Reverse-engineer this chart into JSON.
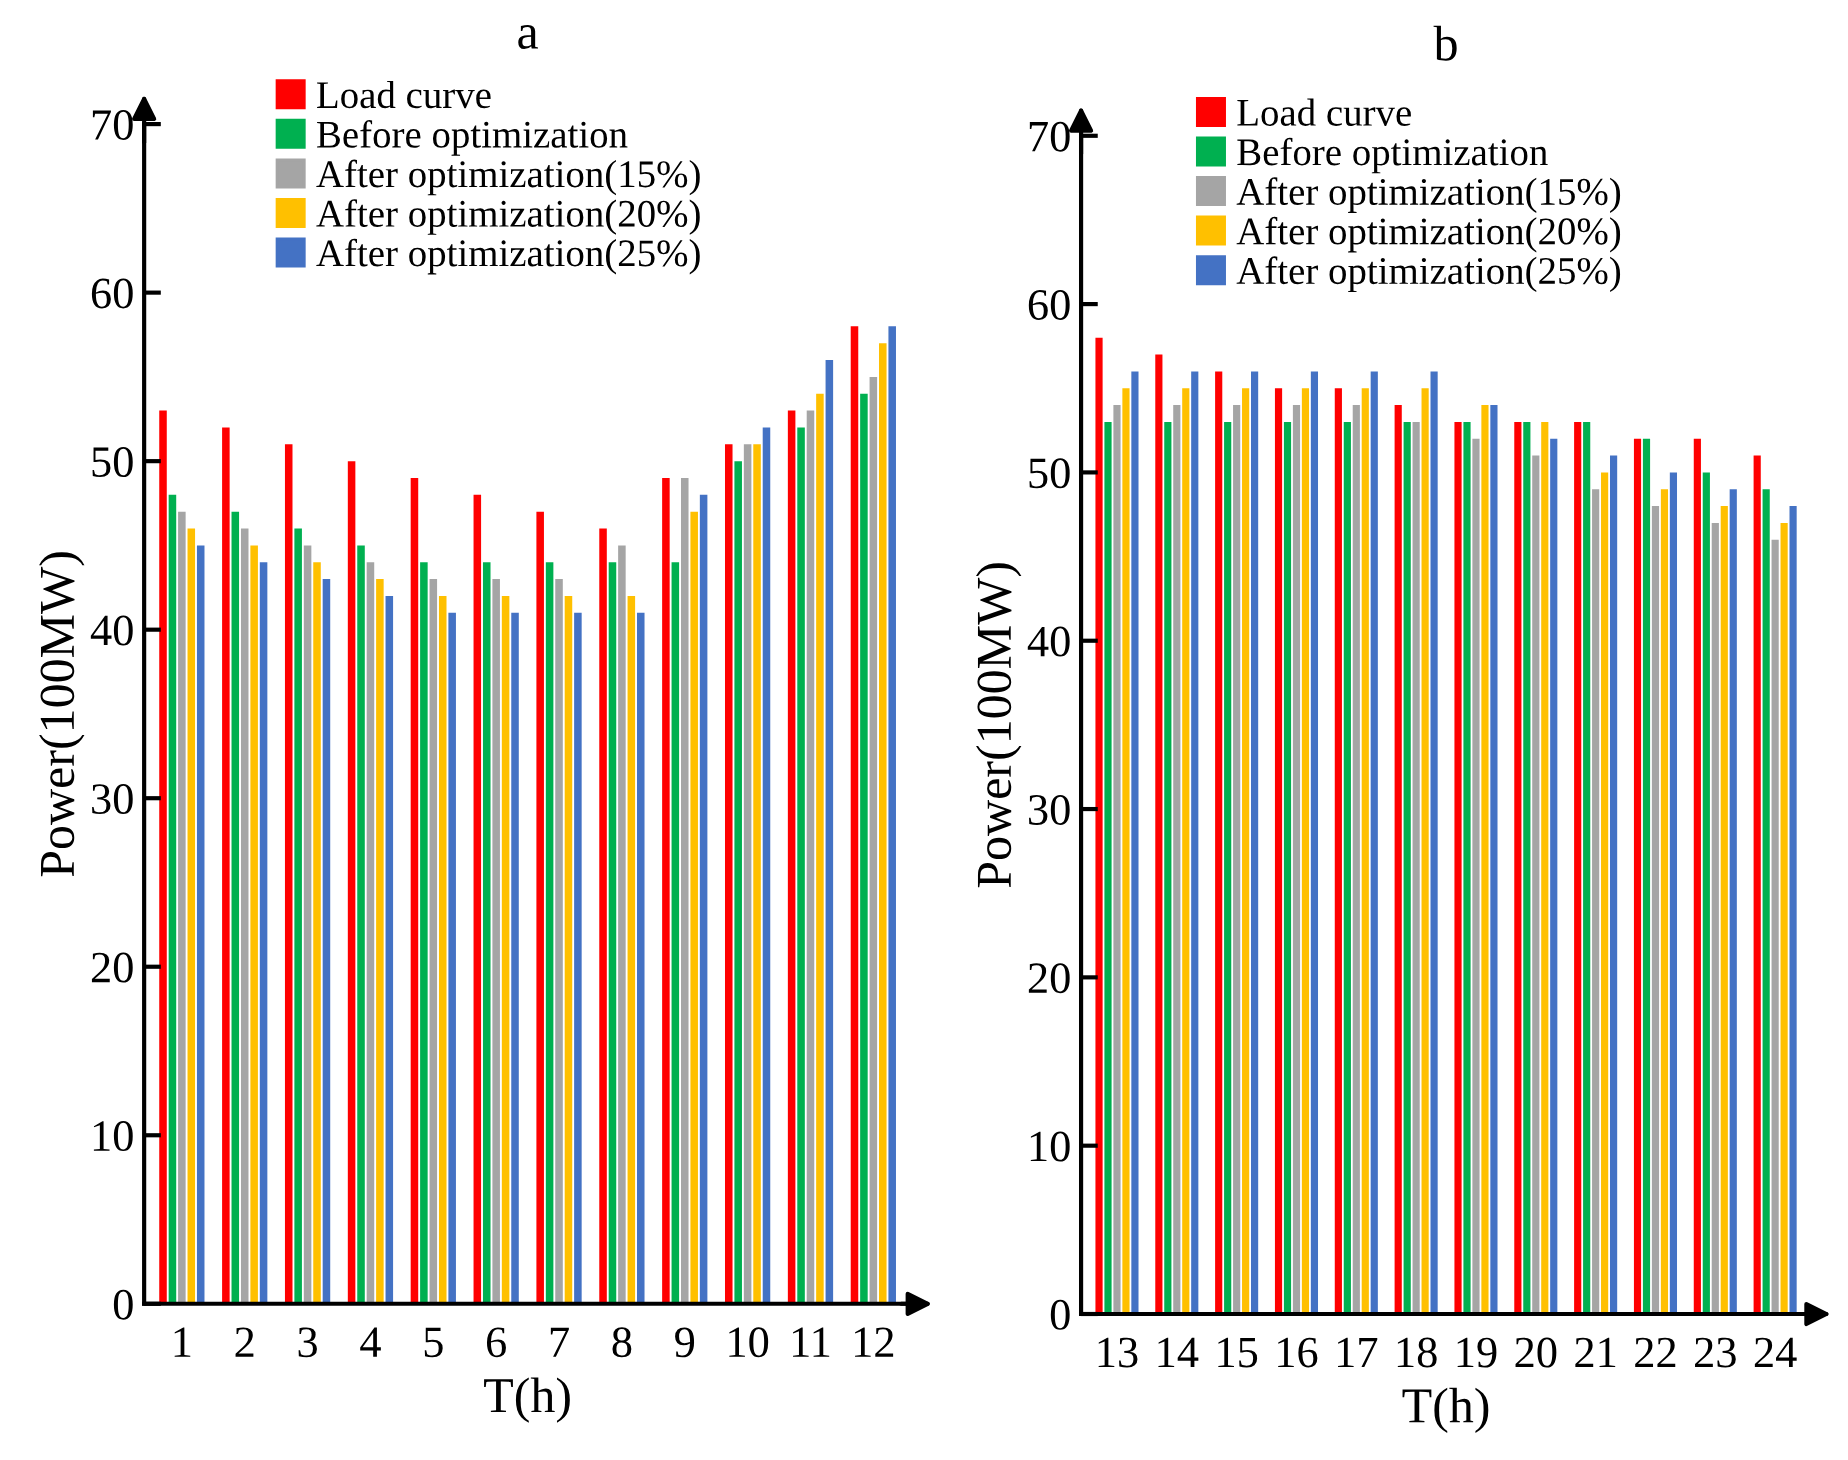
{
  "chart_data": [
    {
      "type": "bar",
      "title": "a",
      "xlabel": "T(h)",
      "ylabel": "Power(100MW)",
      "categories": [
        "1",
        "2",
        "3",
        "4",
        "5",
        "6",
        "7",
        "8",
        "9",
        "10",
        "11",
        "12"
      ],
      "series": [
        {
          "name": "Load curve",
          "color": "#ff0000",
          "values": [
            53,
            52,
            51,
            50,
            49,
            48,
            47,
            46,
            49,
            51,
            53,
            58
          ]
        },
        {
          "name": "Before optimization",
          "color": "#00b050",
          "values": [
            48,
            47,
            46,
            45,
            44,
            44,
            44,
            44,
            44,
            50,
            52,
            54
          ]
        },
        {
          "name": "After optimization(15%)",
          "color": "#a5a5a5",
          "values": [
            47,
            46,
            45,
            44,
            43,
            43,
            43,
            45,
            49,
            51,
            53,
            55
          ]
        },
        {
          "name": "After optimization(20%)",
          "color": "#ffc000",
          "values": [
            46,
            45,
            44,
            43,
            42,
            42,
            42,
            42,
            47,
            51,
            54,
            57
          ]
        },
        {
          "name": "After optimization(25%)",
          "color": "#4472c4",
          "values": [
            45,
            44,
            43,
            42,
            41,
            41,
            41,
            41,
            48,
            52,
            56,
            58
          ]
        }
      ],
      "ylim": [
        0,
        70
      ],
      "yticks": [
        0,
        10,
        20,
        30,
        40,
        50,
        60,
        70
      ],
      "grid": false,
      "legend": "top"
    },
    {
      "type": "bar",
      "title": "b",
      "xlabel": "T(h)",
      "ylabel": "Power(100MW)",
      "categories": [
        "13",
        "14",
        "15",
        "16",
        "17",
        "18",
        "19",
        "20",
        "21",
        "22",
        "23",
        "24"
      ],
      "series": [
        {
          "name": "Load curve",
          "color": "#ff0000",
          "values": [
            58,
            57,
            56,
            55,
            55,
            54,
            53,
            53,
            53,
            52,
            52,
            51
          ]
        },
        {
          "name": "Before optimization",
          "color": "#00b050",
          "values": [
            53,
            53,
            53,
            53,
            53,
            53,
            53,
            53,
            53,
            52,
            50,
            49
          ]
        },
        {
          "name": "After optimization(15%)",
          "color": "#a5a5a5",
          "values": [
            54,
            54,
            54,
            54,
            54,
            53,
            52,
            51,
            49,
            48,
            47,
            46
          ]
        },
        {
          "name": "After optimization(20%)",
          "color": "#ffc000",
          "values": [
            55,
            55,
            55,
            55,
            55,
            55,
            54,
            53,
            50,
            49,
            48,
            47
          ]
        },
        {
          "name": "After optimization(25%)",
          "color": "#4472c4",
          "values": [
            56,
            56,
            56,
            56,
            56,
            56,
            54,
            52,
            51,
            50,
            49,
            48
          ]
        }
      ],
      "ylim": [
        0,
        70
      ],
      "yticks": [
        0,
        10,
        20,
        30,
        40,
        50,
        60,
        70
      ],
      "grid": false,
      "legend": "top"
    }
  ]
}
